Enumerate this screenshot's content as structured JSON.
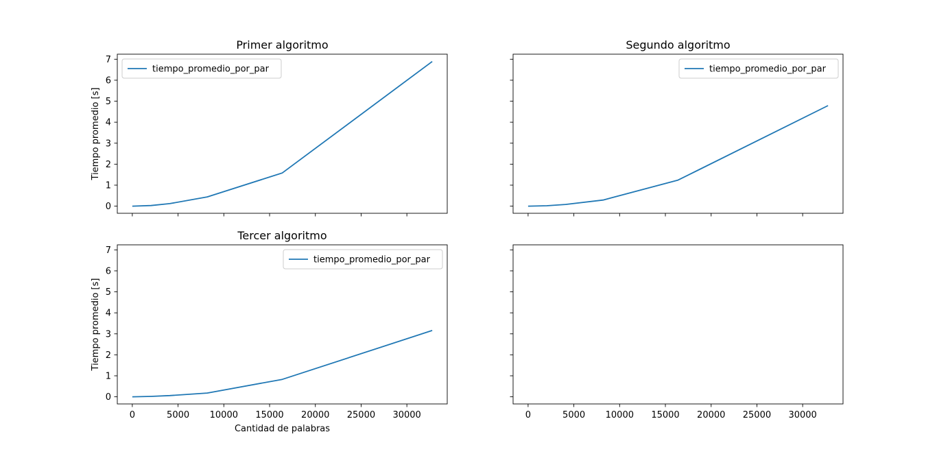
{
  "chart_data": [
    {
      "type": "line",
      "title": "Primer algoritmo",
      "xlabel": "",
      "ylabel": "Tiempo promedio [s]",
      "xlim": [
        -1640,
        34410
      ],
      "ylim": [
        -0.34,
        7.24
      ],
      "xticks": [
        0,
        5000,
        10000,
        15000,
        20000,
        25000,
        30000
      ],
      "yticks": [
        0,
        1,
        2,
        3,
        4,
        5,
        6,
        7
      ],
      "show_xtick_labels": false,
      "show_ytick_labels": true,
      "legend": {
        "position": "upper left",
        "entries": [
          "tiempo_promedio_por_par"
        ]
      },
      "series": [
        {
          "name": "tiempo_promedio_por_par",
          "color": "#1f77b4",
          "x": [
            0,
            2048,
            4096,
            8192,
            16384,
            32768
          ],
          "y": [
            0.0,
            0.03,
            0.12,
            0.44,
            1.58,
            6.89
          ]
        }
      ]
    },
    {
      "type": "line",
      "title": "Segundo algoritmo",
      "xlabel": "",
      "ylabel": "",
      "xlim": [
        -1640,
        34410
      ],
      "ylim": [
        -0.34,
        7.24
      ],
      "xticks": [
        0,
        5000,
        10000,
        15000,
        20000,
        25000,
        30000
      ],
      "yticks": [
        0,
        1,
        2,
        3,
        4,
        5,
        6,
        7
      ],
      "show_xtick_labels": false,
      "show_ytick_labels": false,
      "legend": {
        "position": "upper right",
        "entries": [
          "tiempo_promedio_por_par"
        ]
      },
      "series": [
        {
          "name": "tiempo_promedio_por_par",
          "color": "#1f77b4",
          "x": [
            0,
            2048,
            4096,
            8192,
            16384,
            32768
          ],
          "y": [
            0.0,
            0.02,
            0.08,
            0.29,
            1.24,
            4.79
          ]
        }
      ]
    },
    {
      "type": "line",
      "title": "Tercer algoritmo",
      "xlabel": "Cantidad de palabras",
      "ylabel": "Tiempo promedio [s]",
      "xlim": [
        -1640,
        34410
      ],
      "ylim": [
        -0.34,
        7.24
      ],
      "xticks": [
        0,
        5000,
        10000,
        15000,
        20000,
        25000,
        30000
      ],
      "yticks": [
        0,
        1,
        2,
        3,
        4,
        5,
        6,
        7
      ],
      "show_xtick_labels": true,
      "show_ytick_labels": true,
      "legend": {
        "position": "upper right",
        "entries": [
          "tiempo_promedio_por_par"
        ]
      },
      "series": [
        {
          "name": "tiempo_promedio_por_par",
          "color": "#1f77b4",
          "x": [
            0,
            2048,
            4096,
            8192,
            16384,
            32768
          ],
          "y": [
            0.0,
            0.02,
            0.06,
            0.18,
            0.83,
            3.16
          ]
        }
      ]
    },
    {
      "type": "line",
      "title": "",
      "xlabel": "",
      "ylabel": "",
      "xlim": [
        -1640,
        34410
      ],
      "ylim": [
        -0.34,
        7.24
      ],
      "xticks": [
        0,
        5000,
        10000,
        15000,
        20000,
        25000,
        30000
      ],
      "yticks": [
        0,
        1,
        2,
        3,
        4,
        5,
        6,
        7
      ],
      "show_xtick_labels": true,
      "show_ytick_labels": false,
      "legend": null,
      "series": []
    }
  ]
}
